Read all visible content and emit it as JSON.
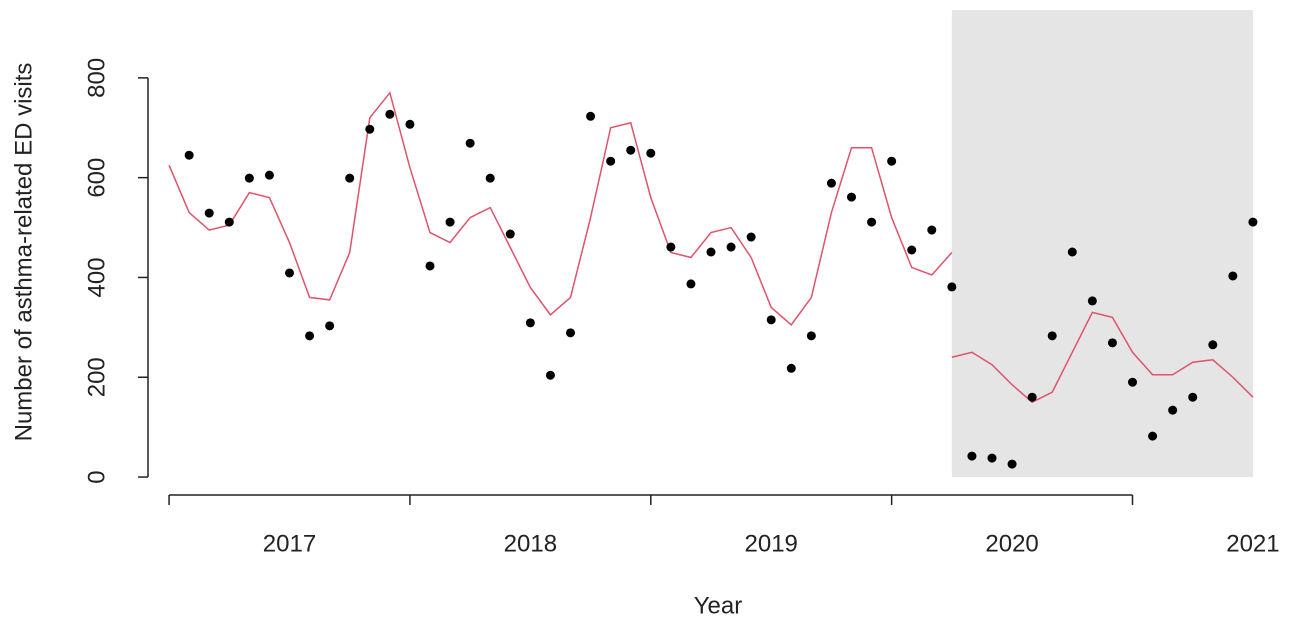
{
  "chart_data": {
    "type": "scatter",
    "y_label": "Number of asthma-related ED visits",
    "x_label": "Year",
    "xlim": [
      -1.05,
      55
    ],
    "ylim": [
      -36,
      936
    ],
    "yticks": [
      0,
      200,
      400,
      600,
      800
    ],
    "xticks": [
      {
        "value": 6,
        "label": "2017"
      },
      {
        "value": 18,
        "label": "2018"
      },
      {
        "value": 30,
        "label": "2019"
      },
      {
        "value": 42,
        "label": "2020"
      },
      {
        "value": 54,
        "label": "2021"
      }
    ],
    "xminor_ticks": [
      0,
      12,
      24,
      36,
      48
    ],
    "shaded_region": {
      "xlim": [
        39,
        54
      ],
      "ylim": [
        0,
        936
      ],
      "color": "#e5e5e5"
    },
    "points": {
      "color": "#000000",
      "x": [
        1,
        2,
        3,
        4,
        5,
        6,
        7,
        8,
        9,
        10,
        11,
        12,
        13,
        14,
        15,
        16,
        17,
        18,
        19,
        20,
        21,
        22,
        23,
        24,
        25,
        26,
        27,
        28,
        29,
        30,
        31,
        32,
        33,
        34,
        35,
        36,
        37,
        38,
        39,
        40,
        41,
        42,
        43,
        44,
        45,
        46,
        47,
        48,
        49,
        50,
        51,
        52,
        53,
        54
      ],
      "values": [
        645,
        529,
        511,
        599,
        605,
        409,
        283,
        303,
        599,
        697,
        727,
        707,
        423,
        511,
        669,
        599,
        487,
        309,
        204,
        289,
        723,
        633,
        655,
        649,
        461,
        387,
        451,
        461,
        481,
        315,
        218,
        283,
        589,
        561,
        511,
        633,
        455,
        495,
        381,
        42,
        38,
        26,
        160,
        283,
        451,
        353,
        269,
        190,
        82,
        134,
        160,
        265,
        403,
        511
      ]
    },
    "fit": {
      "color": "#df536b",
      "x": [
        0,
        1,
        2,
        3,
        4,
        5,
        6,
        7,
        8,
        9,
        10,
        11,
        12,
        13,
        14,
        15,
        16,
        17,
        18,
        19,
        20,
        21,
        22,
        23,
        24,
        25,
        26,
        27,
        28,
        29,
        30,
        31,
        32,
        33,
        34,
        35,
        36,
        37,
        38,
        39,
        39,
        39,
        40,
        41,
        42,
        43,
        44,
        45,
        46,
        47,
        48,
        49,
        50,
        51,
        52,
        53,
        54
      ],
      "values": [
        625,
        530,
        495,
        505,
        570,
        560,
        470,
        360,
        355,
        450,
        720,
        770,
        620,
        490,
        470,
        520,
        540,
        460,
        380,
        325,
        360,
        520,
        700,
        710,
        560,
        450,
        440,
        490,
        500,
        440,
        340,
        305,
        360,
        530,
        660,
        660,
        520,
        420,
        405,
        450,
        null,
        240,
        250,
        225,
        185,
        150,
        170,
        250,
        330,
        320,
        250,
        205,
        205,
        230,
        235,
        200,
        160
      ]
    }
  }
}
